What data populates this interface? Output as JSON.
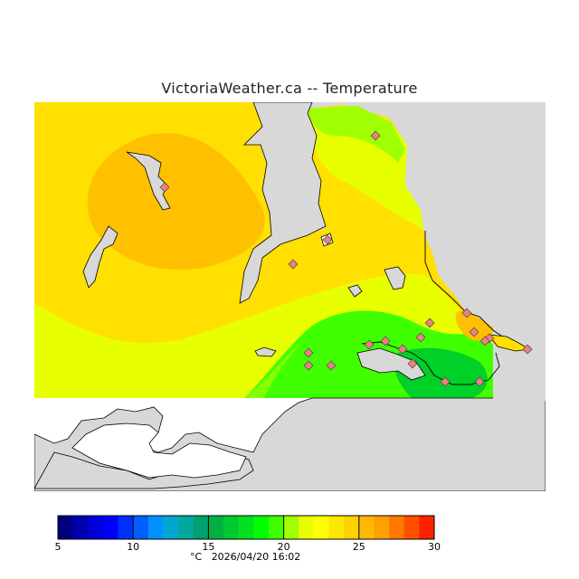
{
  "title": "VictoriaWeather.ca -- Temperature",
  "legend": {
    "unit": "°C",
    "timestamp": "2026/04/20 16:02",
    "min": 5,
    "max": 30,
    "step": 1,
    "ticks": [
      5,
      10,
      15,
      20,
      25,
      30
    ],
    "colors": [
      "#00007f",
      "#0000b0",
      "#0000d8",
      "#0000ff",
      "#0030ff",
      "#0060ff",
      "#0090ff",
      "#00a8d0",
      "#00a8a0",
      "#00a070",
      "#00b040",
      "#00c830",
      "#00e020",
      "#00ff00",
      "#40ff00",
      "#a0ff00",
      "#e8ff00",
      "#ffff00",
      "#ffe800",
      "#ffd000",
      "#ffb800",
      "#ffa000",
      "#ff7800",
      "#ff5000",
      "#ff2000"
    ]
  },
  "map": {
    "land_color": "#d8d8d8",
    "water_color": "#ffffff",
    "station_color": "#f08080",
    "station_count": 20
  }
}
